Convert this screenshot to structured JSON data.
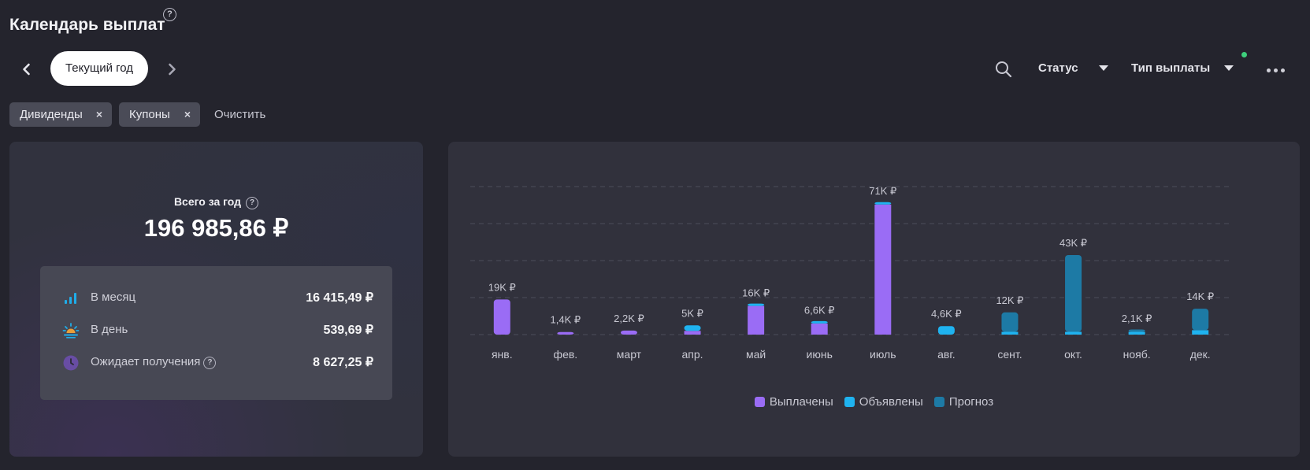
{
  "header": {
    "title": "Календарь выплат",
    "help_glyph": "?",
    "period_label": "Текущий год",
    "status_label": "Статус",
    "type_label": "Тип выплаты"
  },
  "filters": {
    "chips": [
      {
        "label": "Дивиденды",
        "remove": "×"
      },
      {
        "label": "Купоны",
        "remove": "×"
      }
    ],
    "clear_label": "Очистить"
  },
  "summary": {
    "total_label": "Всего за год",
    "total_value": "196 985,86 ₽",
    "stats": [
      {
        "icon": "bar-chart-icon",
        "label": "В месяц",
        "value": "16 415,49 ₽"
      },
      {
        "icon": "sunrise-icon",
        "label": "В день",
        "value": "539,69 ₽"
      },
      {
        "icon": "clock-icon",
        "label": "Ожидает получения",
        "value": "8 627,25 ₽"
      }
    ]
  },
  "colors": {
    "paid": "#9a6cf5",
    "announced": "#1fb3f0",
    "forecast": "#1d7aa5",
    "accent_green": "#3ecf7c"
  },
  "chart_data": {
    "type": "bar",
    "stacked": true,
    "categories": [
      "янв.",
      "фев.",
      "март",
      "апр.",
      "май",
      "июнь",
      "июль",
      "авг.",
      "сент.",
      "окт.",
      "нояб.",
      "дек."
    ],
    "labels": [
      "19K ₽",
      "1,4K ₽",
      "2,2K ₽",
      "5K ₽",
      "16K ₽",
      "6,6K ₽",
      "71K ₽",
      "4,6K ₽",
      "12K ₽",
      "43K ₽",
      "2,1K ₽",
      "14K ₽"
    ],
    "series": [
      {
        "name": "Выплачены",
        "values": [
          19000,
          1400,
          2200,
          2000,
          15500,
          6000,
          70300,
          0,
          0,
          0,
          0,
          0
        ]
      },
      {
        "name": "Объявлены",
        "values": [
          0,
          0,
          0,
          3000,
          500,
          600,
          700,
          4600,
          1500,
          1500,
          1500,
          2400
        ]
      },
      {
        "name": "Прогноз",
        "values": [
          0,
          0,
          0,
          0,
          0,
          0,
          0,
          0,
          10500,
          41500,
          600,
          11600
        ]
      }
    ],
    "ylim": [
      0,
      80000
    ],
    "grid": true,
    "legend": "bottom"
  }
}
